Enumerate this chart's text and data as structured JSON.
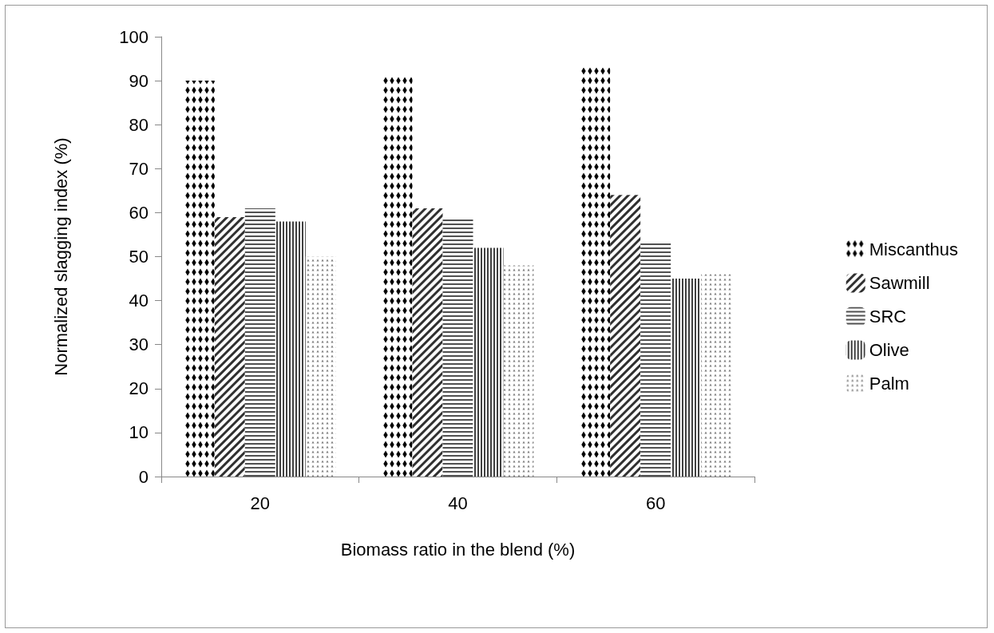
{
  "chart_data": {
    "type": "bar",
    "xlabel": "Biomass ratio in the blend (%)",
    "ylabel": "Normalized slagging index (%)",
    "categories": [
      "20",
      "40",
      "60"
    ],
    "series": [
      {
        "name": "Miscanthus",
        "color": "#000000",
        "values": [
          90,
          91,
          93
        ]
      },
      {
        "name": "Sawmill",
        "color": "#303030",
        "values": [
          59,
          61,
          64
        ]
      },
      {
        "name": "SRC",
        "color": "#505050",
        "values": [
          61,
          59,
          53
        ]
      },
      {
        "name": "Olive",
        "color": "#404040",
        "values": [
          58,
          52,
          45
        ]
      },
      {
        "name": "Palm",
        "color": "#808080",
        "values": [
          50,
          48,
          46
        ]
      }
    ],
    "ylim": [
      0,
      100
    ],
    "yticks": [
      0,
      10,
      20,
      30,
      40,
      50,
      60,
      70,
      80,
      90,
      100
    ],
    "grid": false,
    "legend": "right"
  }
}
